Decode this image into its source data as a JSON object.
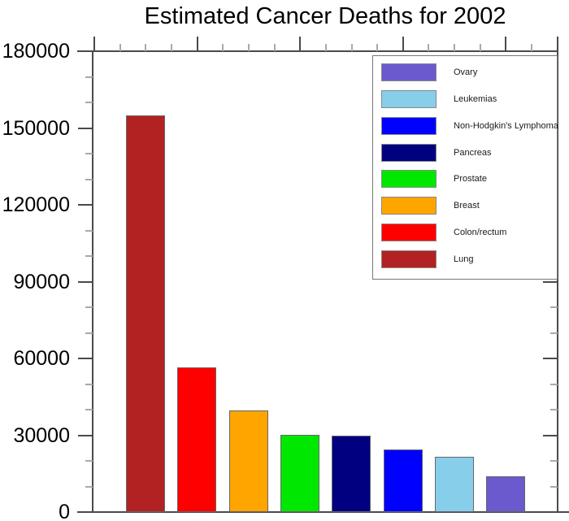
{
  "chart_data": {
    "type": "bar",
    "title": "Estimated Cancer Deaths for 2002",
    "categories": [
      "Lung",
      "Colon/rectum",
      "Breast",
      "Prostate",
      "Pancreas",
      "Non-Hodgkin's Lymphoma",
      "Leukemias",
      "Ovary"
    ],
    "values": [
      154900,
      56600,
      39600,
      30200,
      29700,
      24400,
      21700,
      13900
    ],
    "xlabel": "",
    "ylabel": "",
    "ylim": [
      0,
      180000
    ],
    "ymajor_interval": 30000,
    "yminor_interval": 10000,
    "ytick_labels": [
      "0",
      "30000",
      "60000",
      "90000",
      "120000",
      "150000",
      "180000"
    ],
    "grid": false,
    "legend": {
      "position": "top-right",
      "entries": [
        {
          "label": "Ovary",
          "color": "#6A5ACD"
        },
        {
          "label": "Leukemias",
          "color": "#87CEEB"
        },
        {
          "label": "Non-Hodgkin's Lymphoma",
          "color": "#0000FF"
        },
        {
          "label": "Pancreas",
          "color": "#000080"
        },
        {
          "label": "Prostate",
          "color": "#00E800"
        },
        {
          "label": "Breast",
          "color": "#FFA500"
        },
        {
          "label": "Colon/rectum",
          "color": "#FF0000"
        },
        {
          "label": "Lung",
          "color": "#B22222"
        }
      ]
    },
    "axis_color": "#4a4a4a",
    "minor_tick_color": "#a9a9a9"
  }
}
